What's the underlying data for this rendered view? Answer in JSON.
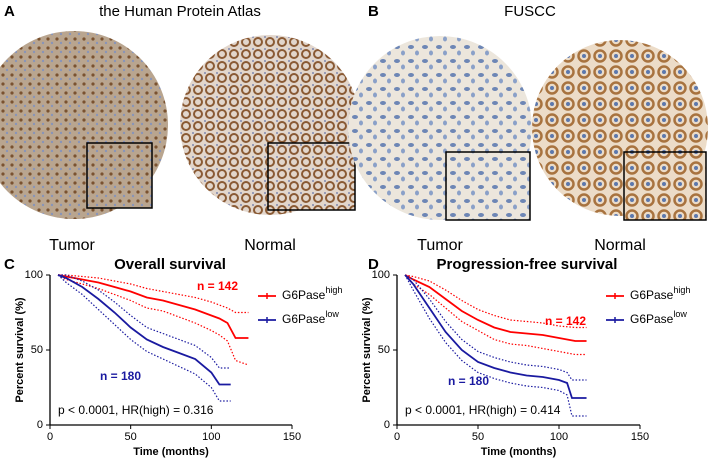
{
  "panels": {
    "A": {
      "letter": "A",
      "title": "the Human Protein Atlas",
      "images": [
        "Tumor",
        "Normal"
      ]
    },
    "B": {
      "letter": "B",
      "title": "FUSCC",
      "images": [
        "Tumor",
        "Normal"
      ]
    }
  },
  "chart_data": [
    {
      "type": "line",
      "letter": "C",
      "title": "Overall survival",
      "x_label": "Time (months)",
      "y_label": "Percent survival (%)",
      "xlim": [
        0,
        150
      ],
      "xticks": [
        0,
        50,
        100,
        150
      ],
      "ylim": [
        0,
        100
      ],
      "yticks": [
        0,
        50,
        100
      ],
      "grid": false,
      "legend": "upper right",
      "annotation": "p < 0.0001, HR(high) = 0.316",
      "series": [
        {
          "name": "G6Pase",
          "name_superscript": "high",
          "color": "#ff0000",
          "annotation": "n = 142",
          "x": [
            5,
            10,
            20,
            30,
            40,
            50,
            60,
            70,
            80,
            90,
            100,
            105,
            110,
            115,
            123
          ],
          "values": [
            100,
            99,
            97,
            95,
            92,
            89,
            85,
            83,
            80,
            77,
            73,
            71,
            68,
            58,
            58
          ],
          "upper": [
            100,
            100,
            99,
            98,
            96,
            94,
            91,
            89,
            87,
            85,
            82,
            80,
            78,
            75,
            75
          ],
          "lower": [
            100,
            97,
            94,
            91,
            87,
            83,
            78,
            76,
            72,
            68,
            63,
            60,
            56,
            43,
            40
          ]
        },
        {
          "name": "G6Pase",
          "name_superscript": "low",
          "color": "#1a1aa0",
          "annotation": "n = 180",
          "x": [
            5,
            10,
            20,
            30,
            40,
            50,
            60,
            70,
            80,
            90,
            100,
            105,
            112
          ],
          "values": [
            100,
            98,
            92,
            84,
            75,
            65,
            57,
            52,
            48,
            44,
            35,
            27,
            27
          ],
          "upper": [
            100,
            100,
            96,
            90,
            82,
            73,
            65,
            61,
            57,
            53,
            45,
            38,
            38
          ],
          "lower": [
            100,
            95,
            87,
            77,
            67,
            57,
            49,
            44,
            39,
            34,
            25,
            16,
            16
          ]
        }
      ]
    },
    {
      "type": "line",
      "letter": "D",
      "title": "Progression-free survival",
      "x_label": "Time (months)",
      "y_label": "Percent survival (%)",
      "xlim": [
        0,
        150
      ],
      "xticks": [
        0,
        50,
        100,
        150
      ],
      "ylim": [
        0,
        100
      ],
      "yticks": [
        0,
        50,
        100
      ],
      "grid": false,
      "legend": "upper right",
      "annotation": "p < 0.0001, HR(high) = 0.414",
      "series": [
        {
          "name": "G6Pase",
          "name_superscript": "high",
          "color": "#ff0000",
          "annotation": "n = 142",
          "x": [
            5,
            10,
            20,
            30,
            40,
            50,
            60,
            70,
            80,
            90,
            100,
            110,
            117
          ],
          "values": [
            100,
            97,
            92,
            84,
            76,
            70,
            65,
            62,
            61,
            60,
            58,
            56,
            56
          ],
          "upper": [
            100,
            99,
            96,
            90,
            83,
            77,
            73,
            70,
            69,
            68,
            66,
            65,
            65
          ],
          "lower": [
            100,
            94,
            87,
            78,
            69,
            63,
            57,
            54,
            53,
            51,
            49,
            47,
            47
          ]
        },
        {
          "name": "G6Pase",
          "name_superscript": "low",
          "color": "#1a1aa0",
          "annotation": "n = 180",
          "x": [
            5,
            10,
            20,
            30,
            40,
            50,
            60,
            70,
            80,
            90,
            100,
            105,
            108,
            117
          ],
          "values": [
            100,
            94,
            78,
            62,
            50,
            42,
            38,
            35,
            33,
            32,
            30,
            28,
            18,
            18
          ],
          "upper": [
            100,
            97,
            84,
            69,
            57,
            49,
            45,
            42,
            40,
            39,
            37,
            35,
            30,
            30
          ],
          "lower": [
            100,
            90,
            71,
            55,
            43,
            35,
            31,
            28,
            26,
            25,
            23,
            20,
            6,
            6
          ]
        }
      ]
    }
  ]
}
